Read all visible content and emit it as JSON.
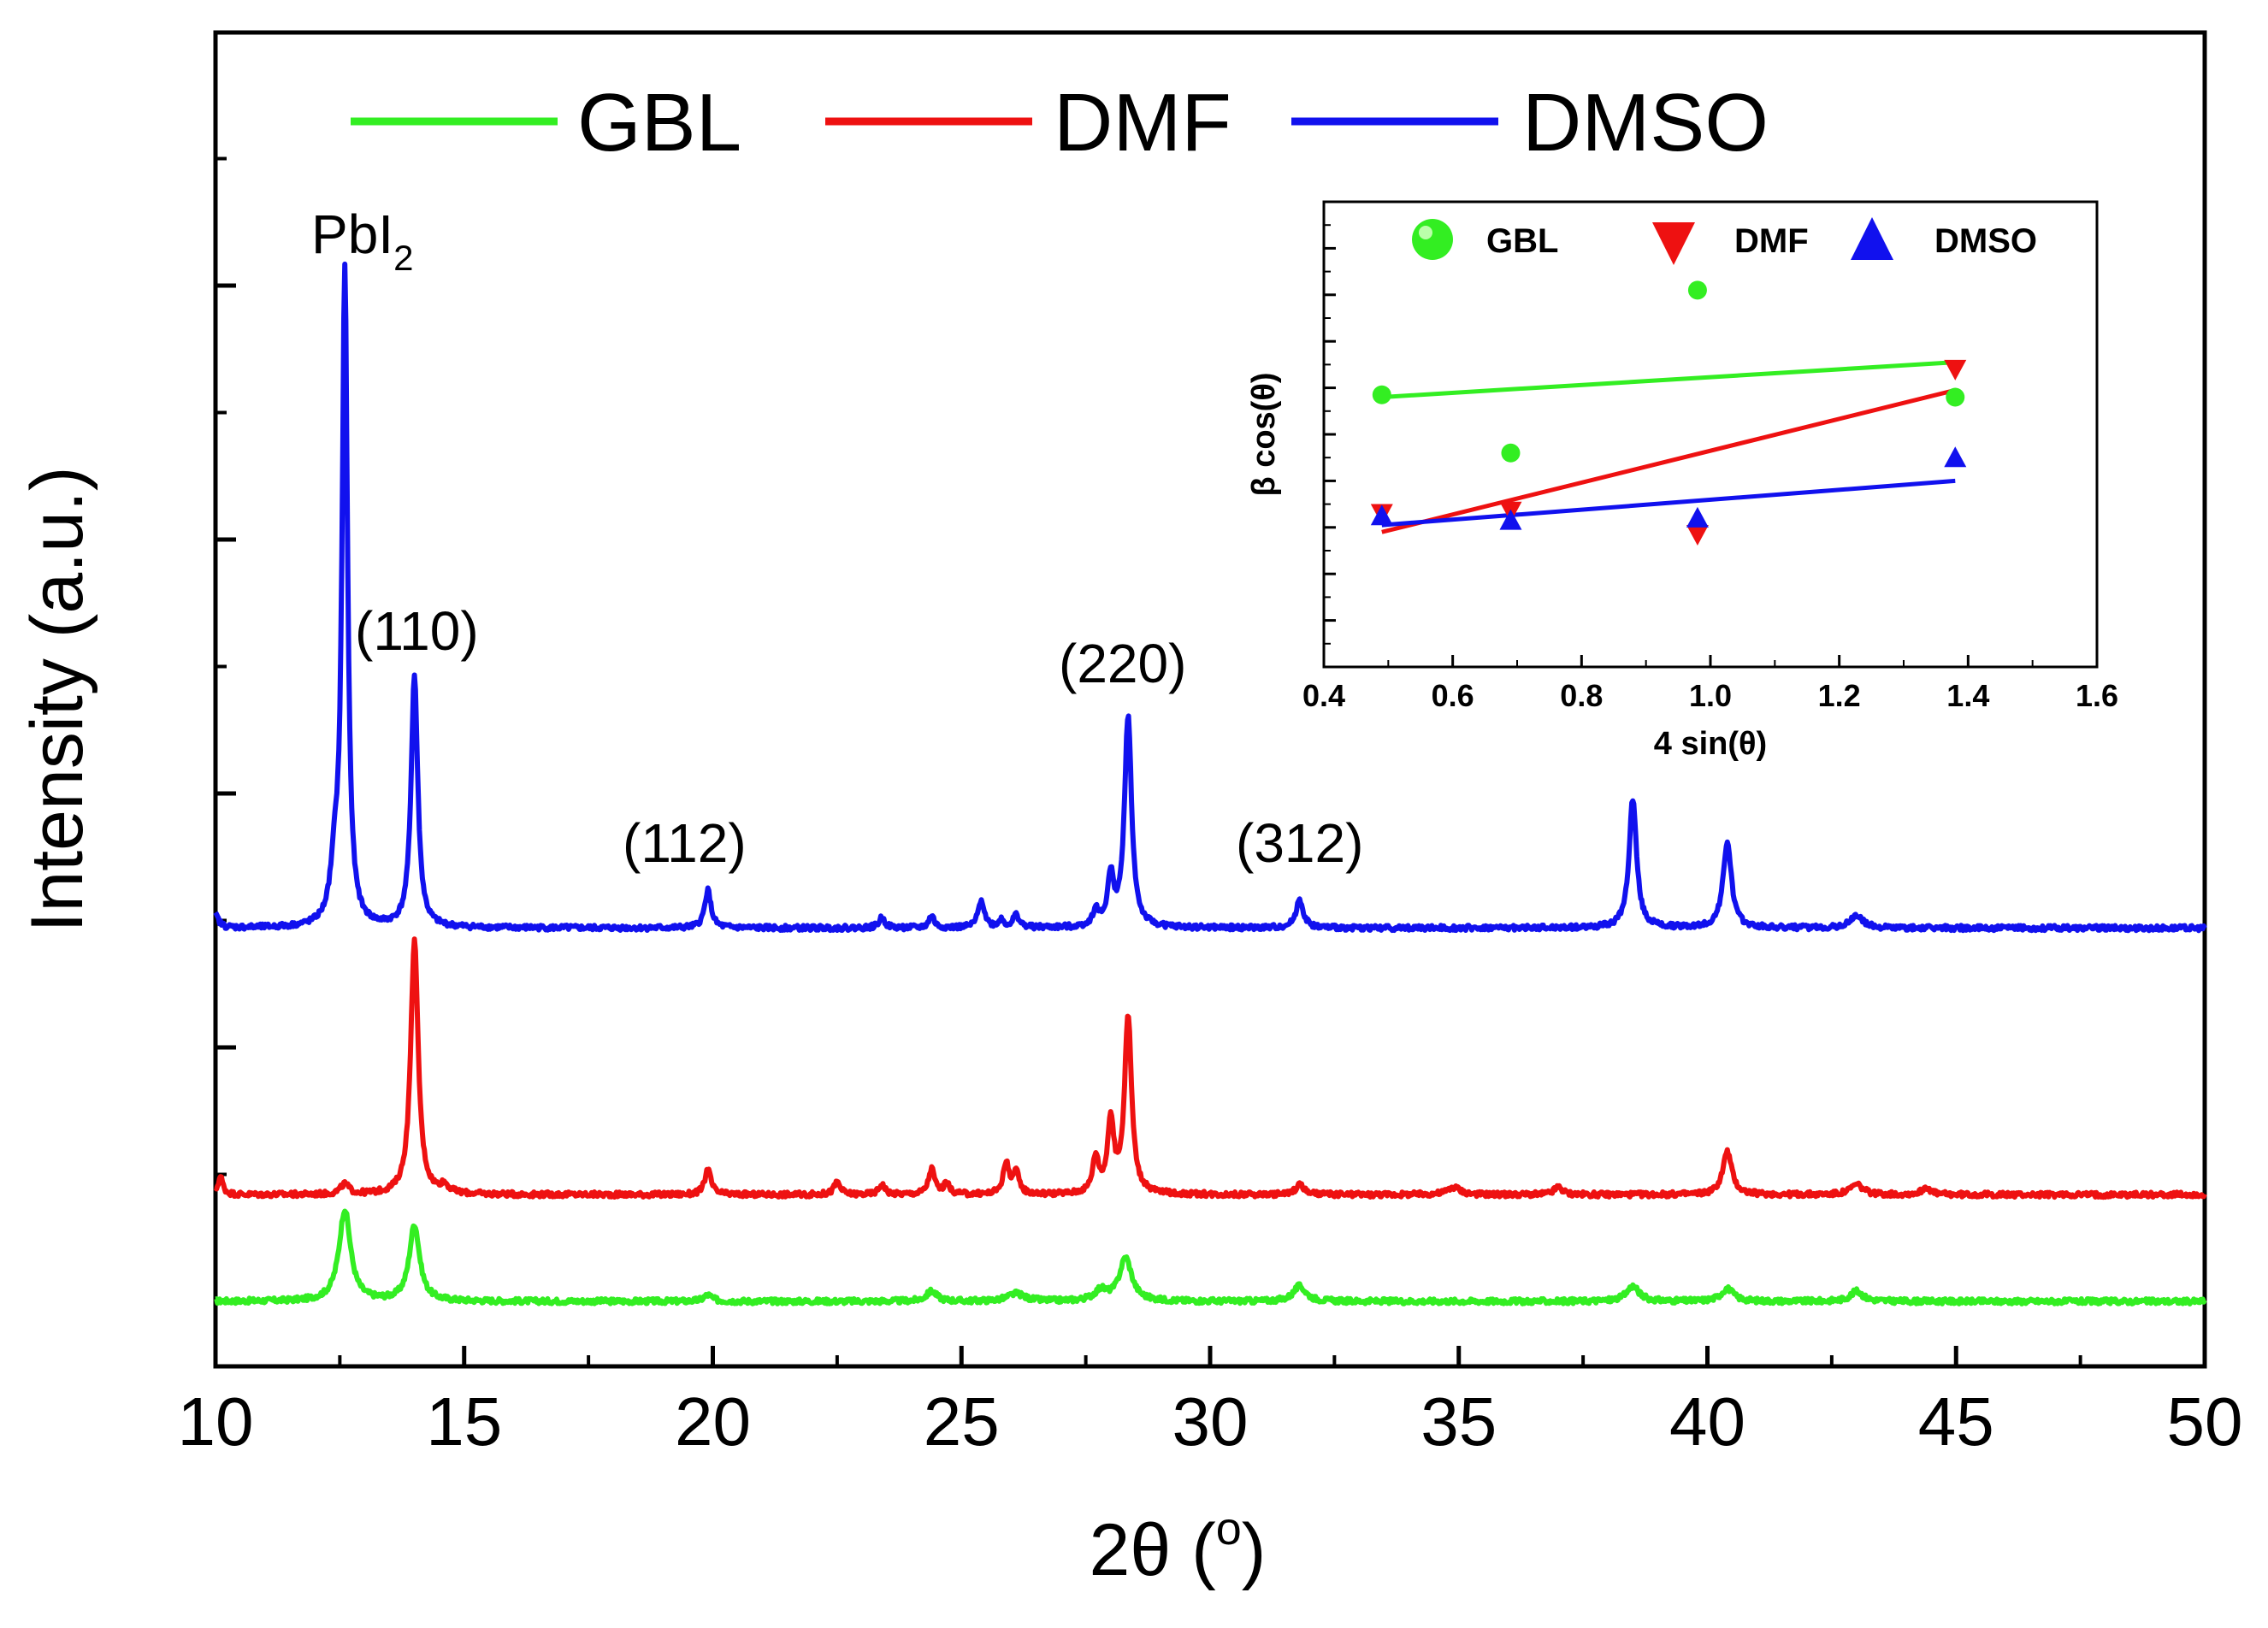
{
  "chart_data": {
    "type": "line",
    "title": "",
    "xlabel": "2θ (°)",
    "xlabel_parts": {
      "prefix": "2θ (",
      "sup": "o",
      "suffix": ")"
    },
    "ylabel": "Intensity (a.u.)",
    "xlim": [
      10,
      50
    ],
    "xticks": [
      "10",
      "15",
      "20",
      "25",
      "30",
      "35",
      "40",
      "45",
      "50"
    ],
    "yticks_labeled": false,
    "grid": false,
    "legend": {
      "placement": "top",
      "entries": [
        "GBL",
        "DMF",
        "DMSO"
      ]
    },
    "series": [
      {
        "name": "GBL",
        "color": "#33ee22",
        "offset": 0,
        "baseline_noise": 0.02,
        "peaks": [
          [
            12.6,
            0.36,
            0.28
          ],
          [
            14.0,
            0.3,
            0.25
          ],
          [
            19.9,
            0.025,
            0.2
          ],
          [
            24.4,
            0.04,
            0.25
          ],
          [
            26.1,
            0.03,
            0.4
          ],
          [
            27.8,
            0.04,
            0.3
          ],
          [
            28.3,
            0.17,
            0.3
          ],
          [
            31.8,
            0.06,
            0.3
          ],
          [
            38.5,
            0.06,
            0.3
          ],
          [
            40.4,
            0.05,
            0.3
          ],
          [
            43.0,
            0.04,
            0.3
          ]
        ]
      },
      {
        "name": "DMF",
        "color": "#ee1111",
        "offset": 0.42,
        "baseline_noise": 0.02,
        "peaks": [
          [
            10.1,
            0.07,
            0.12
          ],
          [
            12.6,
            0.04,
            0.2
          ],
          [
            14.0,
            1.0,
            0.18
          ],
          [
            14.6,
            0.03,
            0.2
          ],
          [
            19.9,
            0.1,
            0.15
          ],
          [
            22.5,
            0.05,
            0.15
          ],
          [
            23.4,
            0.04,
            0.15
          ],
          [
            24.4,
            0.1,
            0.15
          ],
          [
            24.7,
            0.04,
            0.15
          ],
          [
            25.9,
            0.12,
            0.15
          ],
          [
            26.1,
            0.08,
            0.15
          ],
          [
            27.7,
            0.14,
            0.15
          ],
          [
            28.0,
            0.28,
            0.15
          ],
          [
            28.35,
            0.7,
            0.17
          ],
          [
            31.8,
            0.04,
            0.2
          ],
          [
            34.9,
            0.03,
            0.3
          ],
          [
            37.0,
            0.03,
            0.2
          ],
          [
            40.4,
            0.17,
            0.22
          ],
          [
            43.0,
            0.04,
            0.3
          ],
          [
            44.4,
            0.03,
            0.2
          ]
        ]
      },
      {
        "name": "DMSO",
        "color": "#1111ee",
        "offset": 1.47,
        "baseline_noise": 0.02,
        "peaks": [
          [
            10.0,
            0.05,
            0.15
          ],
          [
            12.4,
            0.2,
            0.2
          ],
          [
            12.6,
            2.57,
            0.13
          ],
          [
            14.0,
            0.99,
            0.16
          ],
          [
            19.9,
            0.15,
            0.15
          ],
          [
            23.4,
            0.04,
            0.15
          ],
          [
            24.4,
            0.05,
            0.12
          ],
          [
            25.4,
            0.11,
            0.15
          ],
          [
            25.8,
            0.03,
            0.12
          ],
          [
            26.1,
            0.05,
            0.15
          ],
          [
            27.7,
            0.06,
            0.15
          ],
          [
            28.0,
            0.19,
            0.15
          ],
          [
            28.35,
            0.83,
            0.17
          ],
          [
            31.8,
            0.11,
            0.18
          ],
          [
            38.5,
            0.51,
            0.18
          ],
          [
            40.4,
            0.34,
            0.2
          ],
          [
            43.0,
            0.05,
            0.3
          ]
        ]
      }
    ],
    "annotations": [
      {
        "text_main": "PbI",
        "text_sub": "2",
        "x": 12.6,
        "y": 4.1
      },
      {
        "text": "(110)",
        "x": 14.5,
        "y": 2.5
      },
      {
        "text": "(112)",
        "x": 20.0,
        "y": 1.75
      },
      {
        "text": "(220)",
        "x": 28.2,
        "y": 2.35
      },
      {
        "text": "(312)",
        "x": 32.2,
        "y": 1.75
      }
    ],
    "inset": {
      "type": "scatter",
      "xlabel": "4 sin(θ)",
      "ylabel": "β cos(θ)",
      "xlim": [
        0.4,
        1.6
      ],
      "ylim": [
        0,
        10
      ],
      "xticks": [
        "0.4",
        "0.6",
        "0.8",
        "1.0",
        "1.2",
        "1.4",
        "1.6"
      ],
      "yticks_labeled": false,
      "legend": [
        "GBL",
        "DMF",
        "DMSO"
      ],
      "series": [
        {
          "name": "GBL",
          "color": "#33ee22",
          "marker": "circle",
          "points": [
            [
              0.49,
              5.85
            ],
            [
              0.69,
              4.6
            ],
            [
              0.98,
              8.1
            ],
            [
              1.38,
              5.8
            ]
          ],
          "fit": [
            [
              0.49,
              5.8
            ],
            [
              1.38,
              6.55
            ]
          ]
        },
        {
          "name": "DMF",
          "color": "#ee1111",
          "marker": "triangle-down",
          "points": [
            [
              0.49,
              3.3
            ],
            [
              0.69,
              3.35
            ],
            [
              0.98,
              2.85
            ],
            [
              1.38,
              6.4
            ]
          ],
          "fit": [
            [
              0.49,
              2.9
            ],
            [
              1.38,
              5.95
            ]
          ]
        },
        {
          "name": "DMSO",
          "color": "#1111ee",
          "marker": "triangle-up",
          "points": [
            [
              0.49,
              3.25
            ],
            [
              0.69,
              3.15
            ],
            [
              0.98,
              3.2
            ],
            [
              1.38,
              4.5
            ]
          ],
          "fit": [
            [
              0.49,
              3.05
            ],
            [
              1.38,
              4.0
            ]
          ]
        }
      ]
    }
  }
}
